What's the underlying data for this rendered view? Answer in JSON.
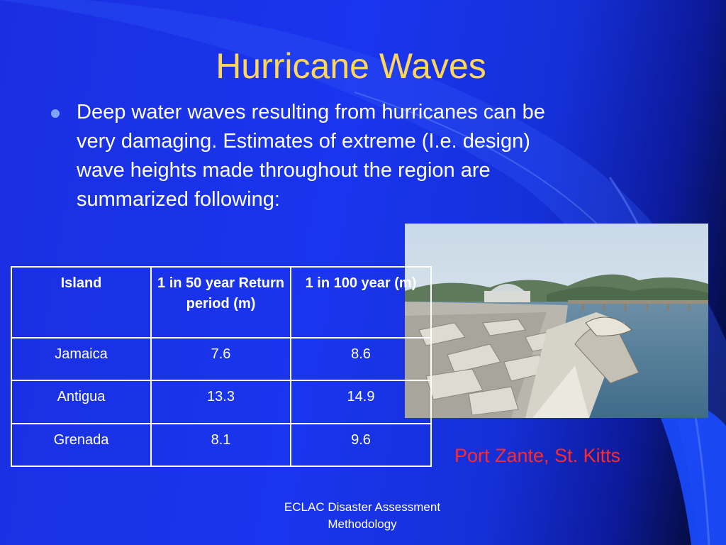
{
  "slide": {
    "title": "Hurricane Waves",
    "bullet": "Deep water waves resulting from hurricanes can be very damaging. Estimates of extreme (I.e. design) wave heights made throughout the region are summarized following:",
    "caption": "Port Zante, St. Kitts",
    "footer": "ECLAC Disaster Assessment Methodology"
  },
  "table": {
    "headers": [
      "Island",
      "1 in 50 year Return period (m)",
      "1 in 100 year (m)"
    ],
    "rows": [
      [
        "Jamaica",
        "7.6",
        "8.6"
      ],
      [
        "Antigua",
        "13.3",
        "14.9"
      ],
      [
        "Grenada",
        "8.1",
        "9.6"
      ]
    ]
  },
  "colors": {
    "title": "#ffd65a",
    "caption": "#ff2a2a",
    "background": "#1a35ee"
  }
}
